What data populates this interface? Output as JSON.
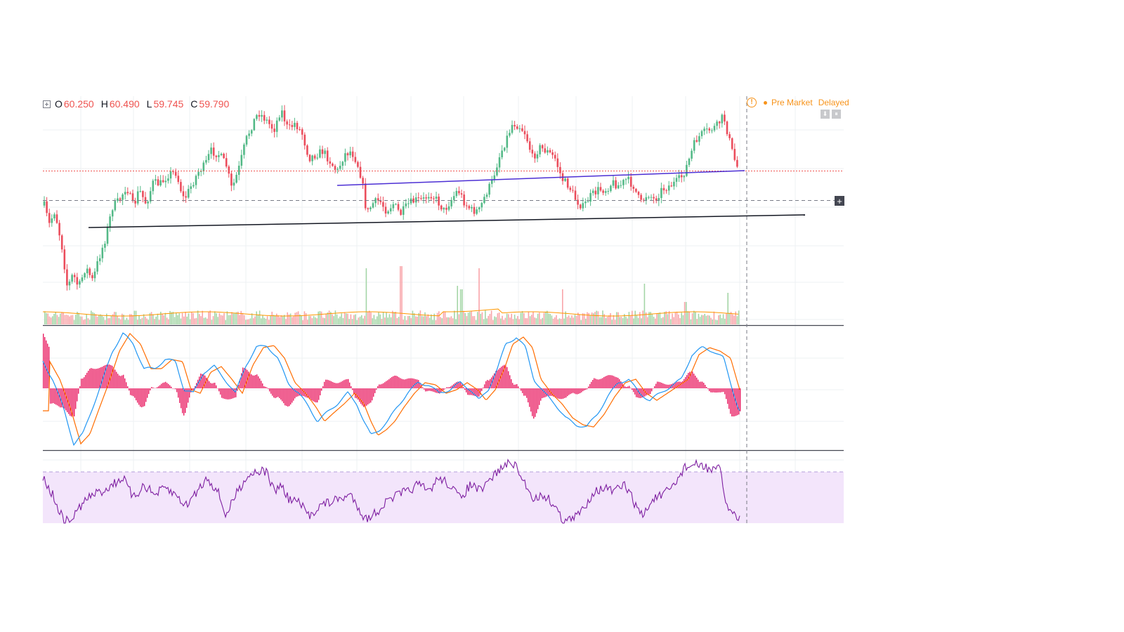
{
  "ohlc": {
    "o_label": "O",
    "o_value": "60.250",
    "h_label": "H",
    "h_value": "60.490",
    "l_label": "L",
    "l_value": "59.745",
    "c_label": "C",
    "c_value": "59.790"
  },
  "status": {
    "warning_glyph": "!",
    "market_state": "Pre Market",
    "data_state": "Delayed"
  },
  "buttons": {
    "scroll_down_glyph": "⬇",
    "pause_glyph": "⏸",
    "add_glyph": "+"
  },
  "colors": {
    "up": "#26a69a",
    "down": "#ef5350",
    "candle_up": "#53b987",
    "candle_down": "#eb4d5c",
    "macd_line": "#2196f3",
    "signal_line": "#ff6d00",
    "histogram": "#e91e63",
    "rsi_line": "#7e1fa1",
    "rsi_band": "#f3e5fb",
    "trendline_purple": "#4c2fd4",
    "trendline_black": "#131722",
    "last_price_line": "#ef5350",
    "warning": "#f7931a"
  },
  "chart_data": {
    "type": "candlestick",
    "panes": [
      "price",
      "macd",
      "rsi"
    ],
    "y_axis_labels_visible": false,
    "x_axis_labels_visible": false,
    "grid": true,
    "last_candle": {
      "open": 60.25,
      "high": 60.49,
      "low": 59.745,
      "close": 59.79
    },
    "trendlines": [
      {
        "name": "resistance",
        "color": "#4c2fd4"
      },
      {
        "name": "support",
        "color": "#131722"
      }
    ],
    "indicators": [
      "Volume",
      "MACD",
      "RSI"
    ]
  }
}
